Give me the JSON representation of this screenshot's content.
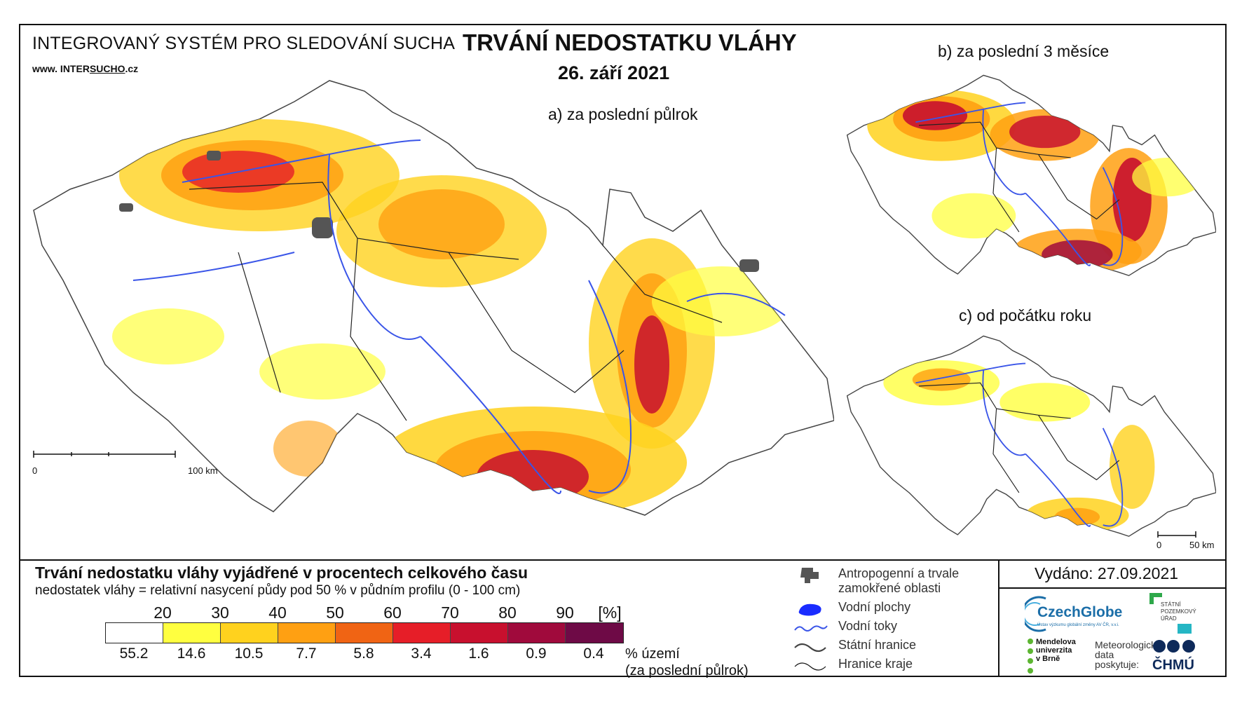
{
  "header": {
    "system_title": "INTEGROVANÝ SYSTÉM PRO SLEDOVÁNÍ SUCHA",
    "website_prefix": "www. INTER",
    "website_mid": "SUCHO",
    "website_suffix": ".cz",
    "title": "TRVÁNÍ NEDOSTATKU VLÁHY",
    "date": "26. září 2021"
  },
  "maps": {
    "a_label": "a) za poslední půlrok",
    "b_label": "b) za poslední 3 měsíce",
    "c_label": "c) od počátku roku",
    "scale_a_start": "0",
    "scale_a_end": "100 km",
    "scale_c_start": "0",
    "scale_c_end": "50 km"
  },
  "legend": {
    "title": "Trvání nedostatku vláhy vyjádřené v procentech celkového času",
    "subtitle": "nedostatek vláhy = relativní nasycení půdy pod 50 % v půdním profilu (0 - 100 cm)",
    "unit": "[%]",
    "thresholds": [
      "20",
      "30",
      "40",
      "50",
      "60",
      "70",
      "80",
      "90"
    ],
    "colors": [
      "#ffffff",
      "#ffff40",
      "#ffd21e",
      "#ffa012",
      "#f06414",
      "#e61e28",
      "#c8102e",
      "#a00a3c",
      "#6e0a46"
    ],
    "area_percent": [
      "55.2",
      "14.6",
      "10.5",
      "7.7",
      "5.8",
      "3.4",
      "1.6",
      "0.9",
      "0.4"
    ],
    "area_label_1": "% území",
    "area_label_2": "(za poslední půlrok)"
  },
  "key": {
    "anthropogenic_1": "Antropogenní a trvale",
    "anthropogenic_2": "zamokřené oblasti",
    "water_bodies": "Vodní plochy",
    "water_streams": "Vodní toky",
    "state_border": "Státní hranice",
    "region_border": "Hranice kraje"
  },
  "footer": {
    "issued": "Vydáno: 27.09.2021",
    "czechglobe": "CzechGlobe",
    "czechglobe_sub": "Ústav výzkumu globální změny AV ČR, v.v.i.",
    "spu_1": "STÁTNÍ",
    "spu_2": "POZEMKOVÝ",
    "spu_3": "ÚŘAD",
    "mendel_1": "Mendelova",
    "mendel_2": "univerzita",
    "mendel_3": "v Brně",
    "meteo_1": "Meteorologická",
    "meteo_2": "data",
    "meteo_3": "poskytuje:",
    "chmu": "ČHMÚ"
  }
}
